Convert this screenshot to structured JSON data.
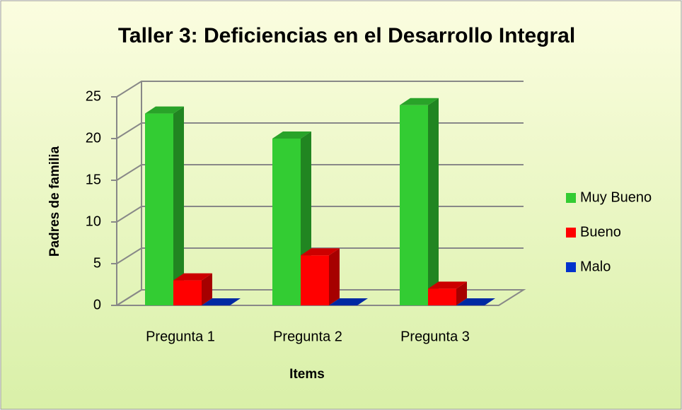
{
  "chart_data": {
    "type": "bar3d",
    "title": "Taller 3: Deficiencias en el Desarrollo Integral",
    "x_label": "Items",
    "y_label": "Padres de familia",
    "categories": [
      "Pregunta 1",
      "Pregunta 2",
      "Pregunta 3"
    ],
    "series": [
      {
        "name": "Muy Bueno",
        "color": "#33cc33",
        "values": [
          23,
          20,
          24
        ]
      },
      {
        "name": "Bueno",
        "color": "#ff0000",
        "values": [
          3,
          6,
          2
        ]
      },
      {
        "name": "Malo",
        "color": "#0033cc",
        "values": [
          0,
          0,
          0
        ]
      }
    ],
    "ylim": [
      0,
      25
    ],
    "yticks": [
      0,
      5,
      10,
      15,
      20,
      25
    ],
    "grid": true,
    "legend": "right"
  }
}
